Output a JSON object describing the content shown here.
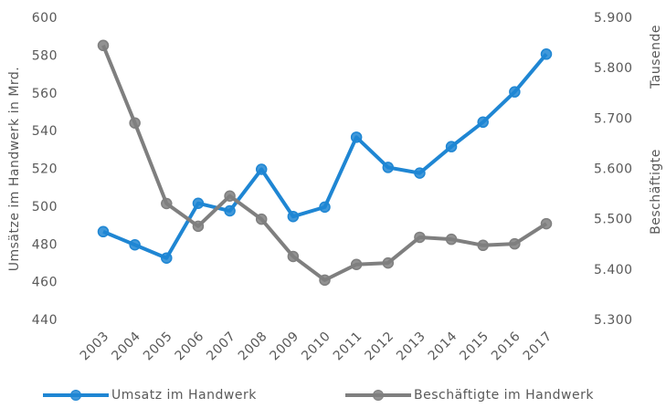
{
  "chart_data": {
    "type": "line",
    "ylabel": "Umsätze im Handwerk in Mrd.",
    "y2label": "Beschäftigte",
    "y2unit": "Tausende",
    "categories": [
      "2003",
      "2004",
      "2005",
      "2006",
      "2007",
      "2008",
      "2009",
      "2010",
      "2011",
      "2012",
      "2013",
      "2014",
      "2015",
      "2016",
      "2017"
    ],
    "series": [
      {
        "name": "Umsatz im Handwerk",
        "color": "#1f86d3",
        "axis": "y",
        "values": [
          487,
          480,
          473,
          502,
          498,
          520,
          495,
          500,
          537,
          521,
          518,
          532,
          545,
          561,
          581
        ]
      },
      {
        "name": "Beschäftigte im Handwerk",
        "color": "#7f7f7f",
        "axis": "y2",
        "values": [
          5846,
          5692,
          5532,
          5487,
          5547,
          5501,
          5427,
          5380,
          5411,
          5414,
          5465,
          5461,
          5449,
          5452,
          5492
        ]
      }
    ],
    "ylim": [
      440,
      600
    ],
    "yticks": [
      440,
      460,
      480,
      500,
      520,
      540,
      560,
      580,
      600
    ],
    "y2lim": [
      5300,
      5900
    ],
    "y2ticks": [
      {
        "value": 5300,
        "label": "5.300"
      },
      {
        "value": 5400,
        "label": "5.400"
      },
      {
        "value": 5500,
        "label": "5.500"
      },
      {
        "value": 5600,
        "label": "5.600"
      },
      {
        "value": 5700,
        "label": "5.700"
      },
      {
        "value": 5800,
        "label": "5.800"
      },
      {
        "value": 5900,
        "label": "5.900"
      }
    ],
    "grid": false,
    "legend": "bottom"
  }
}
